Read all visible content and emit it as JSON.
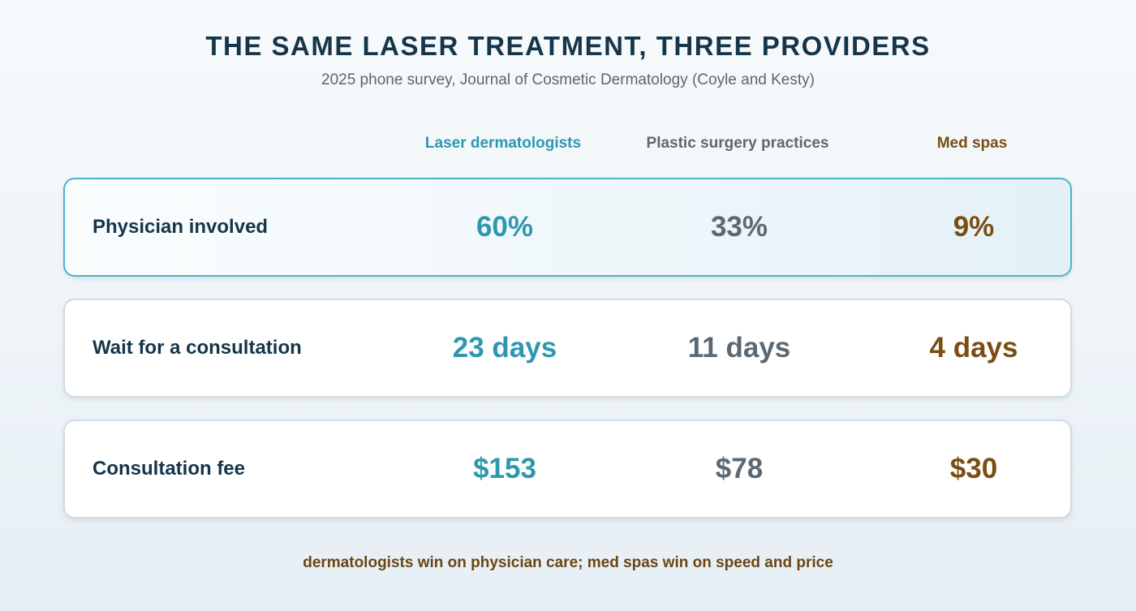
{
  "title": "THE SAME LASER TREATMENT, THREE PROVIDERS",
  "subtitle": "2025 phone survey, Journal of Cosmetic Dermatology (Coyle and Kesty)",
  "footnote": "dermatologists win on physician care; med spas win on speed and price",
  "colors": {
    "laser_dermatologists": "#2e97b0",
    "plastic_surgery_practices": "#5c6872",
    "med_spas": "#7a4e12",
    "highlight_border": "#49b3cc"
  },
  "chart_data": {
    "type": "table",
    "columns": [
      "Laser dermatologists",
      "Plastic surgery practices",
      "Med spas"
    ],
    "rows": [
      {
        "label": "Physician involved",
        "highlighted": true,
        "values": [
          60,
          33,
          9
        ],
        "unit": "%",
        "display": [
          "60%",
          "33%",
          "9%"
        ]
      },
      {
        "label": "Wait for a consultation",
        "highlighted": false,
        "values": [
          23,
          11,
          4
        ],
        "unit": "days",
        "display": [
          "23 days",
          "11 days",
          "4 days"
        ]
      },
      {
        "label": "Consultation fee",
        "highlighted": false,
        "values": [
          153,
          78,
          30
        ],
        "unit": "$",
        "display": [
          "$153",
          "$78",
          "$30"
        ]
      }
    ]
  }
}
